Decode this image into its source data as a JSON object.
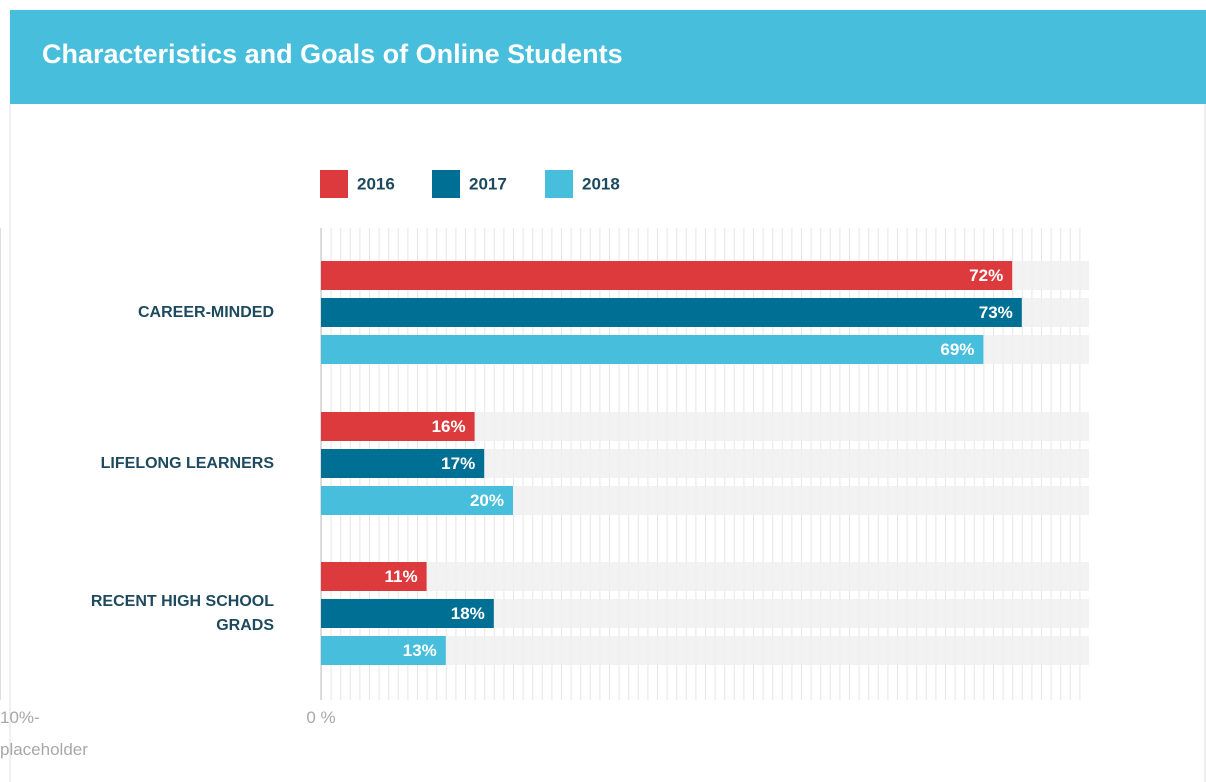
{
  "chart_data": {
    "type": "bar",
    "orientation": "horizontal",
    "title": "Characteristics and Goals of Online Students",
    "categories": [
      "CAREER-MINDED",
      "LIFELONG LEARNERS",
      "RECENT HIGH SCHOOL GRADS"
    ],
    "series": [
      {
        "name": "2016",
        "color": "#dc3a3c",
        "values": [
          72,
          16,
          11
        ],
        "value_labels": [
          "72%",
          "16%",
          "11%"
        ]
      },
      {
        "name": "2017",
        "color": "#006f94",
        "values": [
          73,
          17,
          18
        ],
        "value_labels": [
          "73%",
          "17%",
          "18%"
        ]
      },
      {
        "name": "2018",
        "color": "#47bedb",
        "values": [
          69,
          20,
          13
        ],
        "value_labels": [
          "69%",
          "20%",
          "13%"
        ]
      }
    ],
    "xlim": [
      0,
      80
    ],
    "xticks": [
      {
        "value": 0,
        "label": "0 %"
      },
      "10%-placeholder"
    ],
    "grid": true
  }
}
